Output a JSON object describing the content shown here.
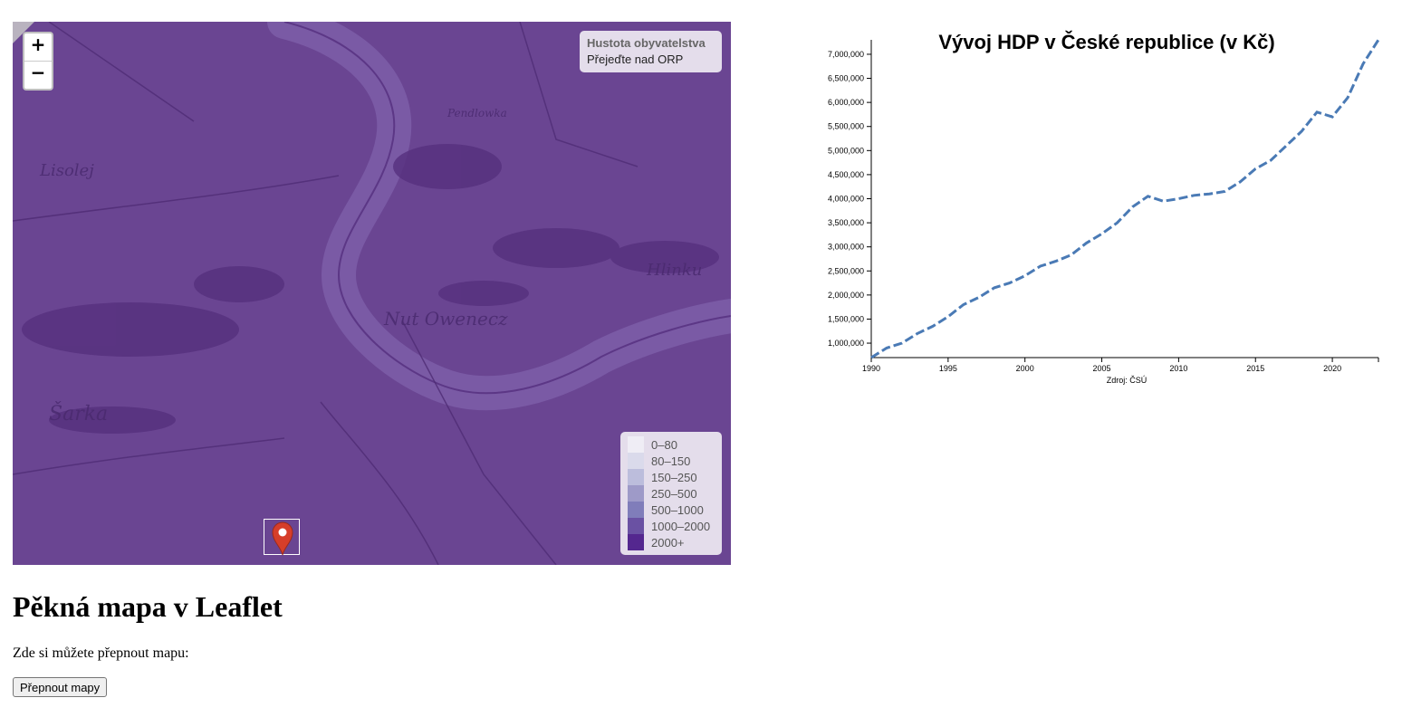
{
  "map": {
    "zoom_in_label": "+",
    "zoom_out_label": "−",
    "info": {
      "title": "Hustota obyvatelstva",
      "hint": "Přejeďte nad ORP"
    },
    "legend": [
      {
        "label": "0–80",
        "color": "#efedf5"
      },
      {
        "label": "80–150",
        "color": "#dadaeb"
      },
      {
        "label": "150–250",
        "color": "#bcbddc"
      },
      {
        "label": "250–500",
        "color": "#9e9ac8"
      },
      {
        "label": "500–1000",
        "color": "#807dba"
      },
      {
        "label": "1000–2000",
        "color": "#6a51a3"
      },
      {
        "label": "2000+",
        "color": "#54278f"
      }
    ],
    "overlay_color": "#6a4592",
    "marker_color": "#d63e2a",
    "marker_icon": "map-marker-icon"
  },
  "page": {
    "heading": "Pěkná mapa v Leaflet",
    "note": "Zde si můžete přepnout mapu:",
    "switch_button": "Přepnout mapy"
  },
  "chart_data": {
    "type": "line",
    "title": "Vývoj HDP v České republice (v Kč)",
    "source": "Zdroj: ČSÚ",
    "line_color": "#4a7ab5",
    "line_style": "dashed",
    "grid": false,
    "x_ticks": [
      1990,
      1995,
      2000,
      2005,
      2010,
      2015,
      2020
    ],
    "y_ticks": [
      1000000,
      1500000,
      2000000,
      2500000,
      3000000,
      3500000,
      4000000,
      4500000,
      5000000,
      5500000,
      6000000,
      6500000,
      7000000
    ],
    "xlim": [
      1990,
      2023
    ],
    "ylim": [
      700000,
      7300000
    ],
    "x": [
      1990,
      1991,
      1992,
      1993,
      1994,
      1995,
      1996,
      1997,
      1998,
      1999,
      2000,
      2001,
      2002,
      2003,
      2004,
      2005,
      2006,
      2007,
      2008,
      2009,
      2010,
      2011,
      2012,
      2013,
      2014,
      2015,
      2016,
      2017,
      2018,
      2019,
      2020,
      2021,
      2022,
      2023
    ],
    "values": [
      700000,
      900000,
      1000000,
      1200000,
      1350000,
      1550000,
      1800000,
      1950000,
      2150000,
      2250000,
      2400000,
      2600000,
      2700000,
      2830000,
      3080000,
      3270000,
      3500000,
      3830000,
      4050000,
      3950000,
      4000000,
      4070000,
      4100000,
      4150000,
      4350000,
      4620000,
      4800000,
      5100000,
      5400000,
      5800000,
      5700000,
      6100000,
      6800000,
      7300000
    ]
  }
}
